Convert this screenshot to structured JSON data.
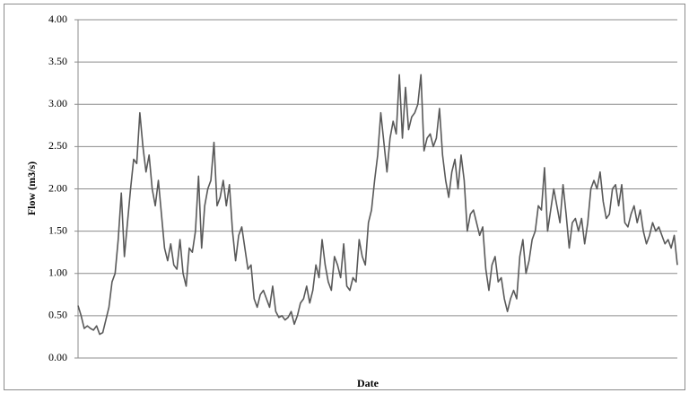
{
  "chart_data": {
    "type": "line",
    "x_label": "Date",
    "y_label": "Flow (m3/s)",
    "color": "#595959",
    "grid": true,
    "ylim": [
      0,
      4
    ],
    "yticks": [
      {
        "value": 0,
        "label": "0.00"
      },
      {
        "value": 0.5,
        "label": "0.50"
      },
      {
        "value": 1,
        "label": "1.00"
      },
      {
        "value": 1.5,
        "label": "1.50"
      },
      {
        "value": 2,
        "label": "2.00"
      },
      {
        "value": 2.5,
        "label": "2.50"
      },
      {
        "value": 3,
        "label": "3.00"
      },
      {
        "value": 3.5,
        "label": "3.50"
      },
      {
        "value": 4,
        "label": "4.00"
      }
    ],
    "values": [
      0.62,
      0.5,
      0.35,
      0.38,
      0.35,
      0.33,
      0.38,
      0.28,
      0.3,
      0.45,
      0.6,
      0.9,
      1.0,
      1.4,
      1.95,
      1.2,
      1.6,
      2.0,
      2.35,
      2.3,
      2.9,
      2.5,
      2.2,
      2.4,
      2.0,
      1.8,
      2.1,
      1.7,
      1.3,
      1.15,
      1.35,
      1.1,
      1.05,
      1.4,
      1.0,
      0.85,
      1.3,
      1.25,
      1.5,
      2.15,
      1.3,
      1.8,
      2.0,
      2.1,
      2.55,
      1.8,
      1.9,
      2.1,
      1.8,
      2.05,
      1.5,
      1.15,
      1.45,
      1.55,
      1.3,
      1.05,
      1.1,
      0.7,
      0.6,
      0.75,
      0.8,
      0.7,
      0.6,
      0.85,
      0.55,
      0.48,
      0.5,
      0.45,
      0.48,
      0.55,
      0.4,
      0.5,
      0.65,
      0.7,
      0.85,
      0.65,
      0.8,
      1.1,
      0.95,
      1.4,
      1.1,
      0.9,
      0.8,
      1.2,
      1.1,
      0.95,
      1.35,
      0.85,
      0.8,
      0.95,
      0.9,
      1.4,
      1.2,
      1.1,
      1.6,
      1.75,
      2.1,
      2.4,
      2.9,
      2.55,
      2.2,
      2.6,
      2.8,
      2.65,
      3.35,
      2.6,
      3.2,
      2.7,
      2.85,
      2.9,
      3.0,
      3.35,
      2.45,
      2.6,
      2.65,
      2.5,
      2.6,
      2.95,
      2.4,
      2.1,
      1.9,
      2.2,
      2.35,
      2.0,
      2.4,
      2.1,
      1.5,
      1.7,
      1.75,
      1.6,
      1.45,
      1.55,
      1.05,
      0.8,
      1.1,
      1.2,
      0.9,
      0.95,
      0.7,
      0.55,
      0.7,
      0.8,
      0.7,
      1.2,
      1.4,
      1.0,
      1.15,
      1.4,
      1.5,
      1.8,
      1.75,
      2.25,
      1.5,
      1.75,
      2.0,
      1.8,
      1.6,
      2.05,
      1.7,
      1.3,
      1.6,
      1.65,
      1.5,
      1.65,
      1.35,
      1.6,
      2.0,
      2.1,
      2.0,
      2.2,
      1.85,
      1.65,
      1.7,
      2.0,
      2.05,
      1.8,
      2.05,
      1.6,
      1.55,
      1.7,
      1.8,
      1.6,
      1.75,
      1.5,
      1.35,
      1.45,
      1.6,
      1.5,
      1.55,
      1.45,
      1.35,
      1.4,
      1.3,
      1.45,
      1.1
    ]
  }
}
